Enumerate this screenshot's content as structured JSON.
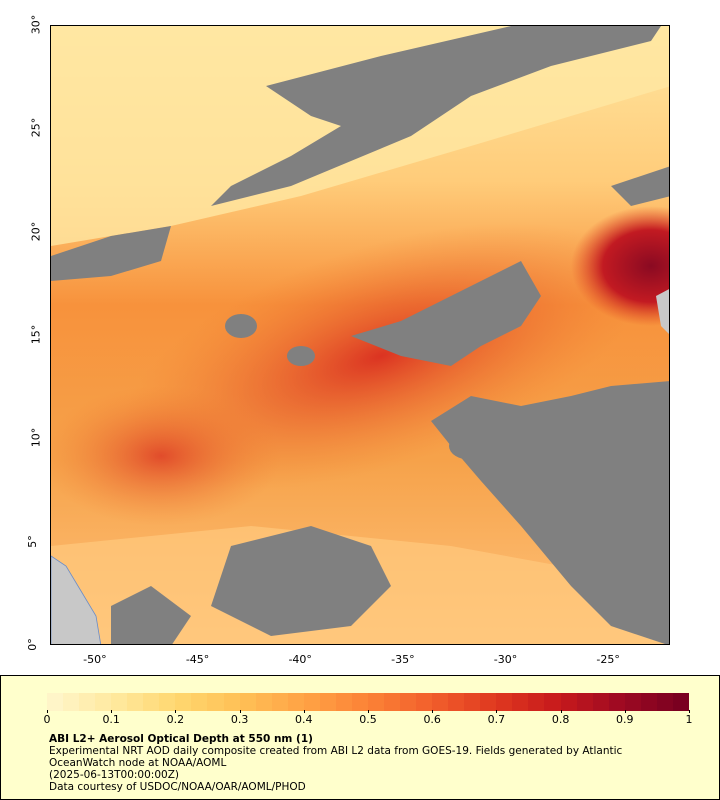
{
  "map": {
    "x_axis_labels": [
      "-50°",
      "-45°",
      "-40°",
      "-35°",
      "-30°",
      "-25°"
    ],
    "y_axis_labels": [
      "0°",
      "5°",
      "10°",
      "15°",
      "20°",
      "25°",
      "30°"
    ],
    "lon_range": [
      -52.2,
      -22
    ],
    "lat_range": [
      0,
      30
    ],
    "no_data_color": "#808080",
    "land_color": "#c8c8c8"
  },
  "legend": {
    "title": "ABI L2+ Aerosol Optical Depth at 550 nm (1)",
    "description": "Experimental NRT AOD daily composite created from ABI L2 data from GOES-19. Fields generated by Atlantic OceanWatch node at NOAA/AOML",
    "timestamp": "(2025-06-13T00:00:00Z)",
    "credit": "Data courtesy of USDOC/NOAA/OAR/AOML/PHOD",
    "colorbar_labels": [
      "0",
      "0.1",
      "0.2",
      "0.3",
      "0.4",
      "0.5",
      "0.6",
      "0.7",
      "0.8",
      "0.9",
      "1"
    ],
    "colorbar_range": [
      0,
      1
    ],
    "colorbar_colors": [
      "#fff5c8",
      "#ffe89c",
      "#ffd66e",
      "#ffbf55",
      "#ffa245",
      "#fb8236",
      "#f2602c",
      "#e03a20",
      "#c81a1c",
      "#9f0a22",
      "#7a0020"
    ]
  }
}
